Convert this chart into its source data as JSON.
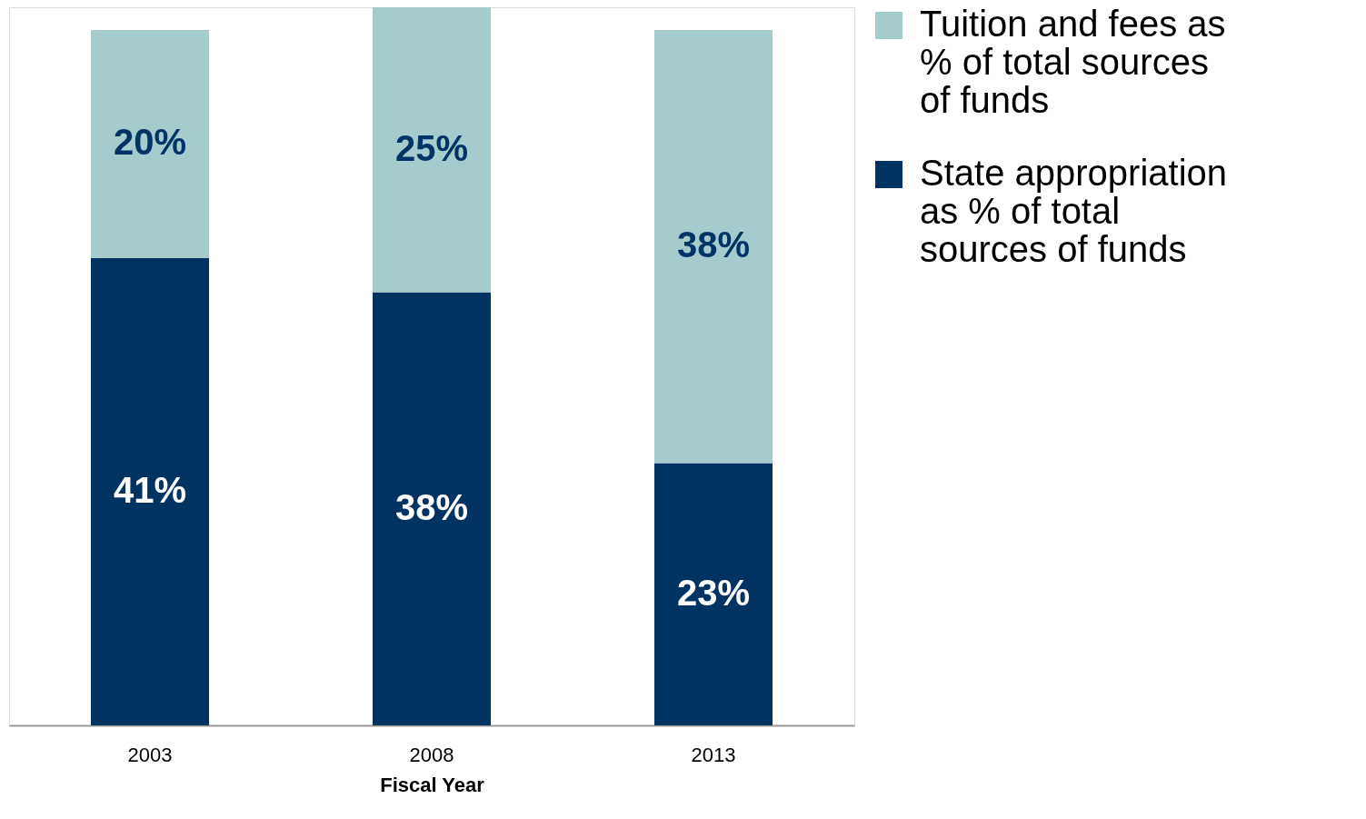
{
  "chart_data": {
    "type": "bar",
    "stacked": true,
    "categories": [
      "2003",
      "2008",
      "2013"
    ],
    "xlabel": "Fiscal Year",
    "series": [
      {
        "name": "State appropriation as % of total sources of funds",
        "color": "#003262",
        "values": [
          41,
          38,
          23
        ],
        "value_labels": [
          "41%",
          "38%",
          "23%"
        ]
      },
      {
        "name": "Tuition and fees as % of total sources of funds",
        "color": "#a4cccc",
        "values": [
          20,
          25,
          38
        ],
        "value_labels": [
          "20%",
          "25%",
          "38%"
        ]
      }
    ],
    "legend": "right"
  }
}
